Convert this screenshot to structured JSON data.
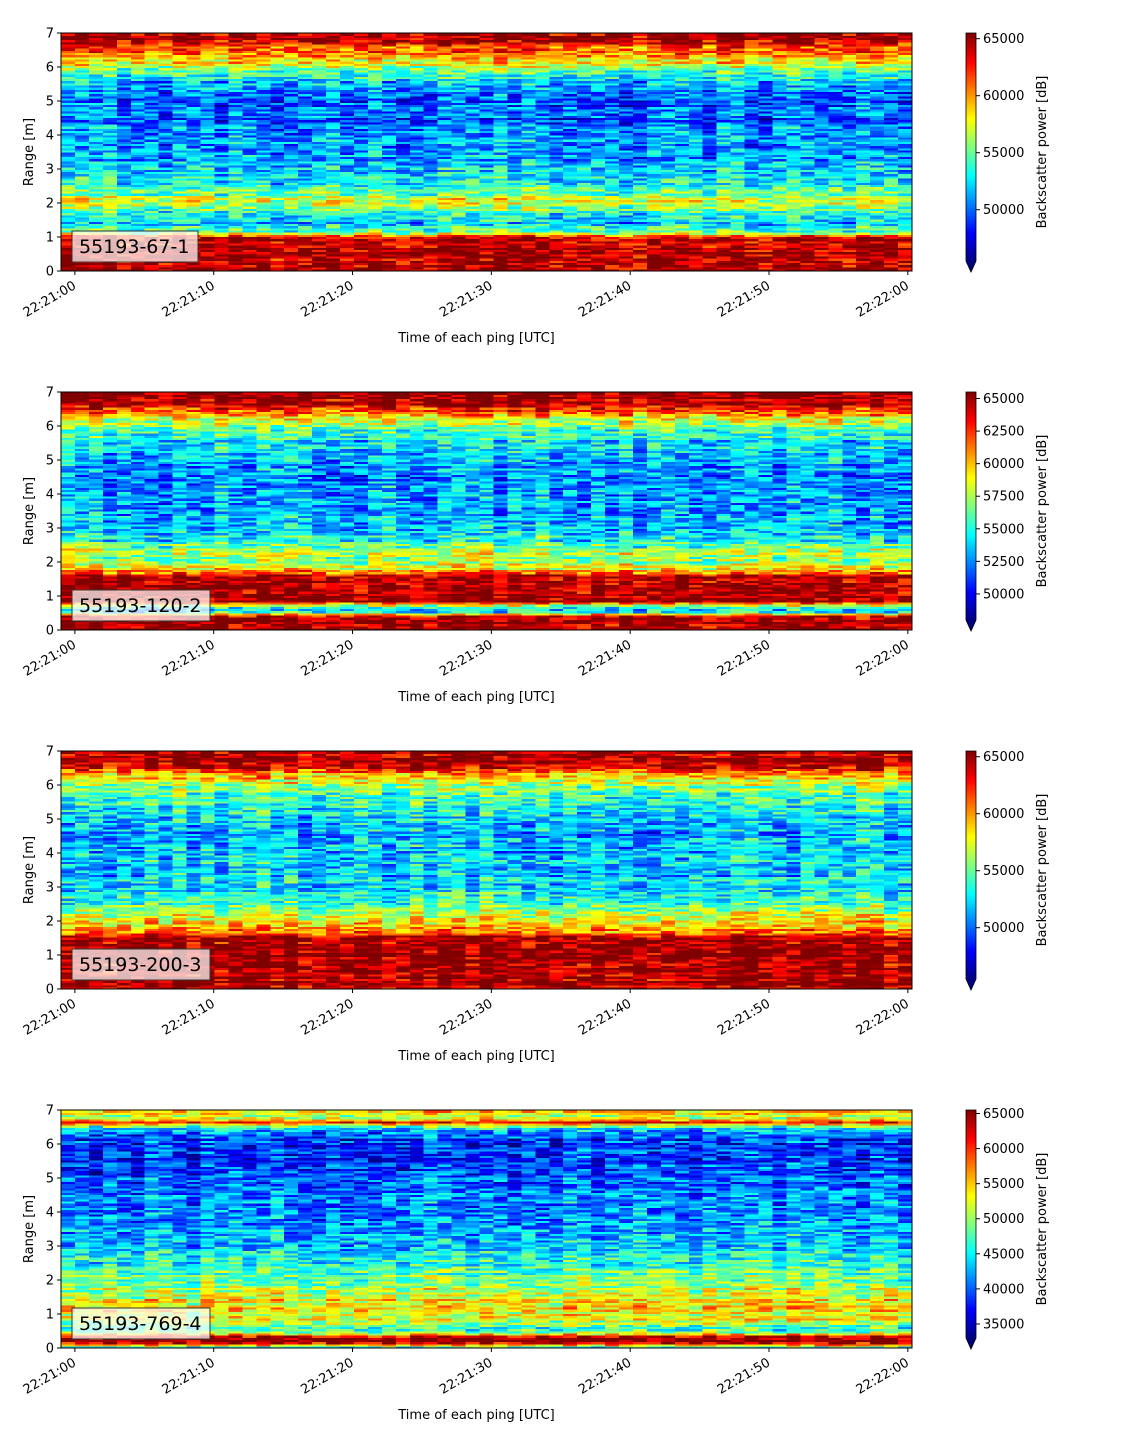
{
  "colormap": "jet",
  "chart_data": [
    {
      "type": "heatmap",
      "label": "55193-67-1",
      "xlabel": "Time of each ping [UTC]",
      "ylabel": "Range [m]",
      "xticks": [
        "22:21:00",
        "22:21:10",
        "22:21:20",
        "22:21:30",
        "22:21:40",
        "22:21:50",
        "22:22:00"
      ],
      "xlim_seconds": [
        -1,
        60.3
      ],
      "ylim": [
        0,
        7
      ],
      "yticks": [
        "0",
        "1",
        "2",
        "3",
        "4",
        "5",
        "6",
        "7"
      ],
      "colorbar": {
        "label": "Backscatter power [dB]",
        "range": [
          45500,
          65500
        ],
        "ticks": [
          "50000",
          "55000",
          "60000",
          "65000"
        ],
        "tick_values": [
          50000,
          55000,
          60000,
          65000
        ],
        "extend": "min"
      },
      "range_profile": [
        [
          0.0,
          65000
        ],
        [
          0.2,
          65000
        ],
        [
          0.35,
          63500
        ],
        [
          0.5,
          65000
        ],
        [
          0.8,
          64500
        ],
        [
          1.0,
          64000
        ],
        [
          1.15,
          55000
        ],
        [
          1.4,
          52000
        ],
        [
          1.7,
          54000
        ],
        [
          2.0,
          58000
        ],
        [
          2.3,
          55000
        ],
        [
          2.6,
          53000
        ],
        [
          3.0,
          52000
        ],
        [
          3.5,
          51000
        ],
        [
          4.0,
          51000
        ],
        [
          4.5,
          50000
        ],
        [
          5.0,
          50000
        ],
        [
          5.5,
          51500
        ],
        [
          5.8,
          54000
        ],
        [
          6.1,
          57500
        ],
        [
          6.4,
          60000
        ],
        [
          6.6,
          62000
        ],
        [
          6.8,
          65000
        ],
        [
          7.0,
          65000
        ]
      ]
    },
    {
      "type": "heatmap",
      "label": "55193-120-2",
      "xlabel": "Time of each ping [UTC]",
      "ylabel": "Range [m]",
      "xticks": [
        "22:21:00",
        "22:21:10",
        "22:21:20",
        "22:21:30",
        "22:21:40",
        "22:21:50",
        "22:22:00"
      ],
      "xlim_seconds": [
        -1,
        60.3
      ],
      "ylim": [
        0,
        7
      ],
      "yticks": [
        "0",
        "1",
        "2",
        "3",
        "4",
        "5",
        "6",
        "7"
      ],
      "colorbar": {
        "label": "Backscatter power [dB]",
        "range": [
          48000,
          65500
        ],
        "ticks": [
          "50000",
          "52500",
          "55000",
          "57500",
          "60000",
          "62500",
          "65000"
        ],
        "tick_values": [
          50000,
          52500,
          55000,
          57500,
          60000,
          62500,
          65000
        ],
        "extend": "min"
      },
      "range_profile": [
        [
          0.0,
          65000
        ],
        [
          0.4,
          65000
        ],
        [
          0.55,
          54000
        ],
        [
          0.7,
          56000
        ],
        [
          0.85,
          65000
        ],
        [
          1.6,
          65000
        ],
        [
          1.8,
          59000
        ],
        [
          2.0,
          57000
        ],
        [
          2.3,
          58000
        ],
        [
          2.6,
          55000
        ],
        [
          3.0,
          54000
        ],
        [
          3.5,
          53000
        ],
        [
          4.0,
          53000
        ],
        [
          4.5,
          52500
        ],
        [
          5.0,
          53000
        ],
        [
          5.5,
          54000
        ],
        [
          6.0,
          56500
        ],
        [
          6.3,
          60000
        ],
        [
          6.6,
          64000
        ],
        [
          6.8,
          65000
        ],
        [
          7.0,
          65000
        ]
      ]
    },
    {
      "type": "heatmap",
      "label": "55193-200-3",
      "xlabel": "Time of each ping [UTC]",
      "ylabel": "Range [m]",
      "xticks": [
        "22:21:00",
        "22:21:10",
        "22:21:20",
        "22:21:30",
        "22:21:40",
        "22:21:50",
        "22:22:00"
      ],
      "xlim_seconds": [
        -1,
        60.3
      ],
      "ylim": [
        0,
        7
      ],
      "yticks": [
        "0",
        "1",
        "2",
        "3",
        "4",
        "5",
        "6",
        "7"
      ],
      "colorbar": {
        "label": "Backscatter power [dB]",
        "range": [
          45500,
          65500
        ],
        "ticks": [
          "50000",
          "55000",
          "60000",
          "65000"
        ],
        "tick_values": [
          50000,
          55000,
          60000,
          65000
        ],
        "extend": "min"
      },
      "range_profile": [
        [
          0.0,
          65000
        ],
        [
          1.5,
          65000
        ],
        [
          1.7,
          61000
        ],
        [
          2.0,
          58000
        ],
        [
          2.3,
          56000
        ],
        [
          2.6,
          54000
        ],
        [
          3.0,
          53000
        ],
        [
          3.5,
          52000
        ],
        [
          4.0,
          52000
        ],
        [
          4.5,
          51500
        ],
        [
          5.0,
          52000
        ],
        [
          5.5,
          53500
        ],
        [
          6.0,
          56000
        ],
        [
          6.4,
          61000
        ],
        [
          6.6,
          65000
        ],
        [
          7.0,
          65000
        ]
      ]
    },
    {
      "type": "heatmap",
      "label": "55193-769-4",
      "xlabel": "Time of each ping [UTC]",
      "ylabel": "Range [m]",
      "xticks": [
        "22:21:00",
        "22:21:10",
        "22:21:20",
        "22:21:30",
        "22:21:40",
        "22:21:50",
        "22:22:00"
      ],
      "xlim_seconds": [
        -1,
        60.3
      ],
      "ylim": [
        0,
        7
      ],
      "yticks": [
        "0",
        "1",
        "2",
        "3",
        "4",
        "5",
        "6",
        "7"
      ],
      "colorbar": {
        "label": "Backscatter power [dB]",
        "range": [
          33000,
          65500
        ],
        "ticks": [
          "35000",
          "40000",
          "45000",
          "50000",
          "55000",
          "60000",
          "65000"
        ],
        "tick_values": [
          35000,
          40000,
          45000,
          50000,
          55000,
          60000,
          65000
        ],
        "extend": "min"
      },
      "range_profile": [
        [
          0.0,
          44000
        ],
        [
          0.18,
          65000
        ],
        [
          0.32,
          65000
        ],
        [
          0.45,
          50000
        ],
        [
          0.6,
          46000
        ],
        [
          0.8,
          52000
        ],
        [
          1.2,
          54000
        ],
        [
          1.6,
          52000
        ],
        [
          2.0,
          49000
        ],
        [
          2.5,
          46000
        ],
        [
          3.0,
          44000
        ],
        [
          3.5,
          42500
        ],
        [
          4.0,
          42000
        ],
        [
          4.5,
          41000
        ],
        [
          5.0,
          40000
        ],
        [
          5.5,
          39000
        ],
        [
          6.0,
          38500
        ],
        [
          6.3,
          40000
        ],
        [
          6.5,
          46000
        ],
        [
          6.65,
          62000
        ],
        [
          6.8,
          50000
        ],
        [
          7.0,
          56000
        ]
      ]
    }
  ]
}
